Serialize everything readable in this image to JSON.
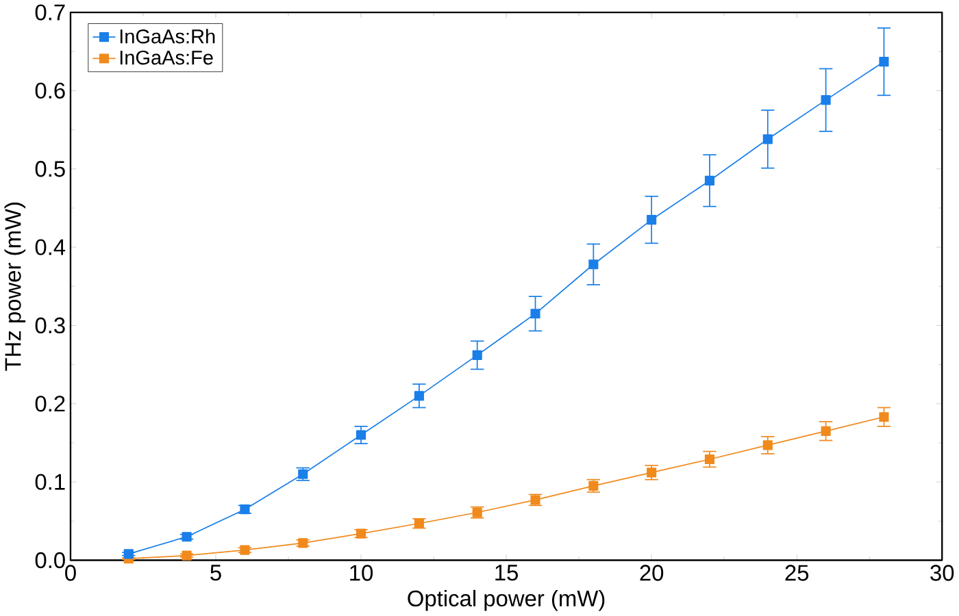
{
  "chart_data": {
    "type": "line",
    "xlabel": "Optical power (mW)",
    "ylabel": "THz power (mW)",
    "x": [
      2,
      4,
      6,
      8,
      10,
      12,
      14,
      16,
      18,
      20,
      22,
      24,
      26,
      28
    ],
    "series": [
      {
        "name": "InGaAs:Rh",
        "color": "#1a7fe8",
        "values": [
          0.008,
          0.03,
          0.065,
          0.11,
          0.16,
          0.21,
          0.262,
          0.315,
          0.378,
          0.435,
          0.485,
          0.538,
          0.588,
          0.637
        ],
        "errors": [
          0.002,
          0.003,
          0.005,
          0.008,
          0.011,
          0.015,
          0.018,
          0.022,
          0.026,
          0.03,
          0.033,
          0.037,
          0.04,
          0.043
        ]
      },
      {
        "name": "InGaAs:Fe",
        "color": "#f08a1d",
        "values": [
          0.002,
          0.006,
          0.013,
          0.022,
          0.034,
          0.047,
          0.061,
          0.077,
          0.095,
          0.112,
          0.129,
          0.147,
          0.165,
          0.183
        ],
        "errors": [
          0.001,
          0.002,
          0.003,
          0.004,
          0.005,
          0.006,
          0.007,
          0.007,
          0.008,
          0.009,
          0.01,
          0.011,
          0.012,
          0.012
        ]
      }
    ],
    "xlim": [
      0,
      30
    ],
    "ylim": [
      0,
      0.7
    ],
    "xticks": [
      0,
      5,
      10,
      15,
      20,
      25,
      30
    ],
    "yticks": [
      {
        "value": 0,
        "label": "0.0"
      },
      0.1,
      0.2,
      0.3,
      0.4,
      0.5,
      0.6,
      0.7
    ],
    "legend": "top left",
    "marker": "square",
    "line_style": "solid",
    "grid": false
  }
}
